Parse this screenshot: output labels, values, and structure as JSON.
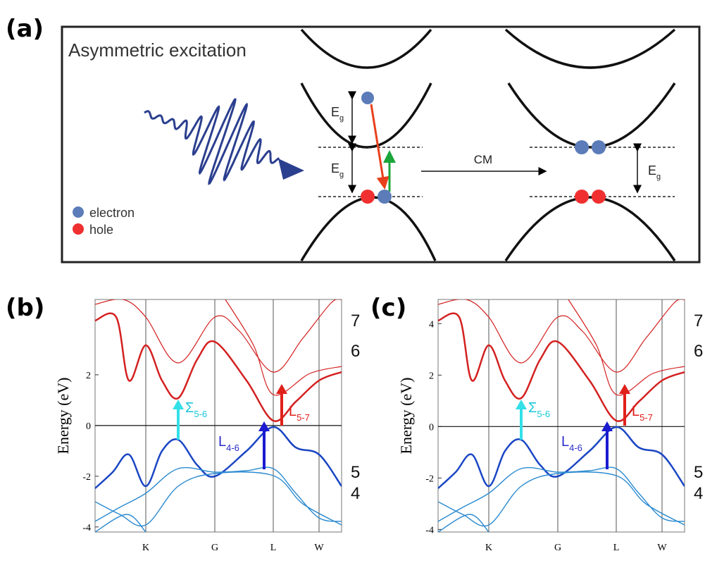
{
  "panel_a": {
    "label": "(a)",
    "title": "Asymmetric excitation",
    "legend": [
      "electron",
      "hole"
    ],
    "gap_label": {
      "main": "E",
      "sub": "g"
    },
    "process": "CM"
  },
  "panel_b": {
    "label": "(b)",
    "y_label": "Energy (eV)",
    "ylim": [
      -4.2,
      4.97
    ],
    "yticks": [
      -4,
      -2,
      0,
      2
    ],
    "x_points": [
      "K",
      "G",
      "L",
      "W"
    ],
    "band_labels": [
      "7",
      "6",
      "5",
      "4"
    ],
    "transitions": [
      {
        "main": "Σ",
        "sub": "5-6"
      },
      {
        "main": "L",
        "sub": "4-6"
      },
      {
        "main": "L",
        "sub": "5-7"
      }
    ]
  },
  "panel_c": {
    "label": "(c)",
    "y_label": "Energy (eV)",
    "ylim": [
      -4.1,
      4.94
    ],
    "yticks": [
      -4,
      -2,
      0,
      2,
      4
    ],
    "x_points": [
      "K",
      "G",
      "L",
      "W"
    ],
    "band_labels": [
      "7",
      "6",
      "5",
      "4"
    ],
    "transitions": [
      {
        "main": "Σ",
        "sub": "5-6"
      },
      {
        "main": "L",
        "sub": "4-6"
      },
      {
        "main": "L",
        "sub": "5-7"
      }
    ]
  }
}
